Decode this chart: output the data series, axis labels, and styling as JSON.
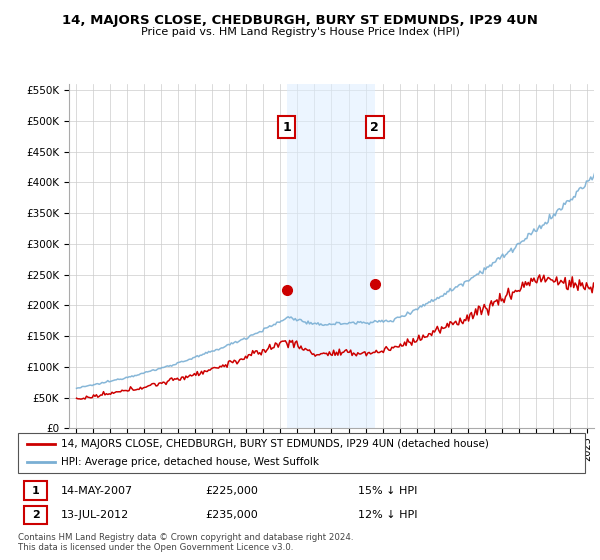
{
  "title": "14, MAJORS CLOSE, CHEDBURGH, BURY ST EDMUNDS, IP29 4UN",
  "subtitle": "Price paid vs. HM Land Registry's House Price Index (HPI)",
  "legend_line1": "14, MAJORS CLOSE, CHEDBURGH, BURY ST EDMUNDS, IP29 4UN (detached house)",
  "legend_line2": "HPI: Average price, detached house, West Suffolk",
  "transaction1_date": "14-MAY-2007",
  "transaction1_price": "£225,000",
  "transaction1_desc": "15% ↓ HPI",
  "transaction1_year": 2007.37,
  "transaction1_value": 225000,
  "transaction2_date": "13-JUL-2012",
  "transaction2_price": "£235,000",
  "transaction2_desc": "12% ↓ HPI",
  "transaction2_year": 2012.54,
  "transaction2_value": 235000,
  "footer_line1": "Contains HM Land Registry data © Crown copyright and database right 2024.",
  "footer_line2": "This data is licensed under the Open Government Licence v3.0.",
  "red_color": "#cc0000",
  "blue_color": "#7aafd4",
  "highlight_fill": "#ddeeff",
  "grid_color": "#cccccc",
  "ylim_max": 560000,
  "ytick_labels": [
    "£0",
    "£50K",
    "£100K",
    "£150K",
    "£200K",
    "£250K",
    "£300K",
    "£350K",
    "£400K",
    "£450K",
    "£500K",
    "£550K"
  ],
  "ytick_values": [
    0,
    50000,
    100000,
    150000,
    200000,
    250000,
    300000,
    350000,
    400000,
    450000,
    500000,
    550000
  ],
  "xmin": 1994.6,
  "xmax": 2025.4
}
